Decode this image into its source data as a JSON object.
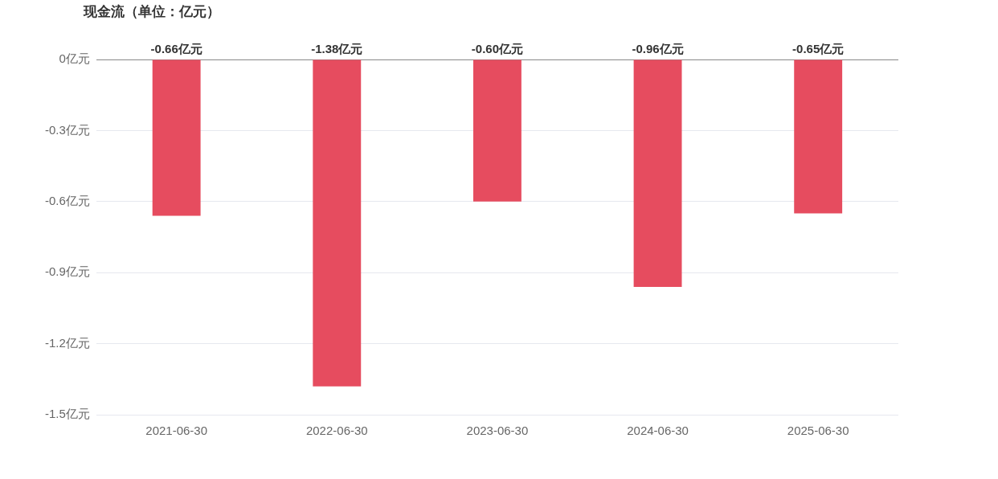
{
  "chart_data": {
    "type": "bar",
    "title": "现金流（单位：亿元）",
    "categories": [
      "2021-06-30",
      "2022-06-30",
      "2023-06-30",
      "2024-06-30",
      "2025-06-30"
    ],
    "series": [
      {
        "color": "#e64c5f",
        "values": [
          -0.66,
          -1.38,
          -0.6,
          -0.96,
          -0.65
        ],
        "value_labels": [
          "-0.66亿元",
          "-1.38亿元",
          "-0.60亿元",
          "-0.96亿元",
          "-0.65亿元"
        ]
      }
    ],
    "ylim": [
      -1.5,
      0
    ],
    "yticks": [
      {
        "value": 0,
        "label": "0亿元"
      },
      {
        "value": -0.3,
        "label": "-0.3亿元"
      },
      {
        "value": -0.6,
        "label": "-0.6亿元"
      },
      {
        "value": -0.9,
        "label": "-0.9亿元"
      },
      {
        "value": -1.2,
        "label": "-1.2亿元"
      },
      {
        "value": -1.5,
        "label": "-1.5亿元"
      }
    ],
    "grid": "y",
    "legend": false
  }
}
